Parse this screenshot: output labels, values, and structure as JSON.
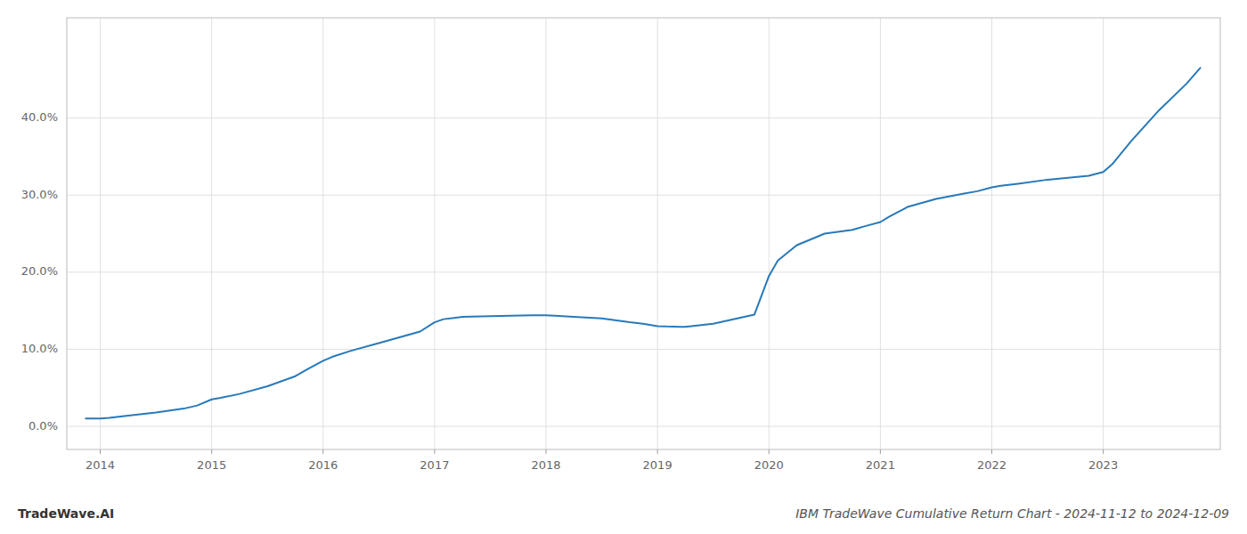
{
  "chart_data": {
    "type": "line",
    "title": "IBM TradeWave Cumulative Return Chart - 2024-11-12 to 2024-12-09",
    "annotations": [
      "TradeWave.AI"
    ],
    "x": [
      2013.87,
      2014.0,
      2014.08,
      2014.25,
      2014.5,
      2014.75,
      2014.87,
      2015.0,
      2015.08,
      2015.25,
      2015.5,
      2015.75,
      2015.87,
      2016.0,
      2016.08,
      2016.25,
      2016.5,
      2016.75,
      2016.87,
      2017.0,
      2017.08,
      2017.25,
      2017.5,
      2017.87,
      2018.0,
      2018.08,
      2018.25,
      2018.5,
      2018.75,
      2018.87,
      2019.0,
      2019.08,
      2019.25,
      2019.5,
      2019.87,
      2020.0,
      2020.08,
      2020.25,
      2020.5,
      2020.75,
      2020.87,
      2021.0,
      2021.08,
      2021.25,
      2021.5,
      2021.75,
      2021.87,
      2022.0,
      2022.08,
      2022.25,
      2022.5,
      2022.87,
      2023.0,
      2023.08,
      2023.25,
      2023.5,
      2023.75,
      2023.87
    ],
    "values": [
      1.0,
      1.0,
      1.1,
      1.4,
      1.8,
      2.3,
      2.7,
      3.5,
      3.7,
      4.2,
      5.2,
      6.5,
      7.5,
      8.5,
      9.0,
      9.8,
      10.8,
      11.8,
      12.3,
      13.5,
      13.9,
      14.2,
      14.3,
      14.4,
      14.4,
      14.35,
      14.2,
      14.0,
      13.5,
      13.3,
      13.0,
      12.95,
      12.9,
      13.3,
      14.5,
      19.5,
      21.5,
      23.5,
      25.0,
      25.5,
      26.0,
      26.5,
      27.2,
      28.5,
      29.5,
      30.2,
      30.5,
      31.0,
      31.2,
      31.5,
      32.0,
      32.5,
      33.0,
      34.0,
      37.0,
      41.0,
      44.5,
      46.5
    ],
    "color": "#2879b9",
    "xlim": [
      2013.7,
      2024.05
    ],
    "xticks": [
      2014,
      2015,
      2016,
      2017,
      2018,
      2019,
      2020,
      2021,
      2022,
      2023
    ],
    "ylim": [
      -3,
      53
    ],
    "yticks": [
      {
        "value": 0.0,
        "label": "0.0%"
      },
      {
        "value": 10.0,
        "label": "10.0%"
      },
      {
        "value": 20.0,
        "label": "20.0%"
      },
      {
        "value": 30.0,
        "label": "30.0%"
      },
      {
        "value": 40.0,
        "label": "40.0%"
      }
    ],
    "grid": true
  }
}
